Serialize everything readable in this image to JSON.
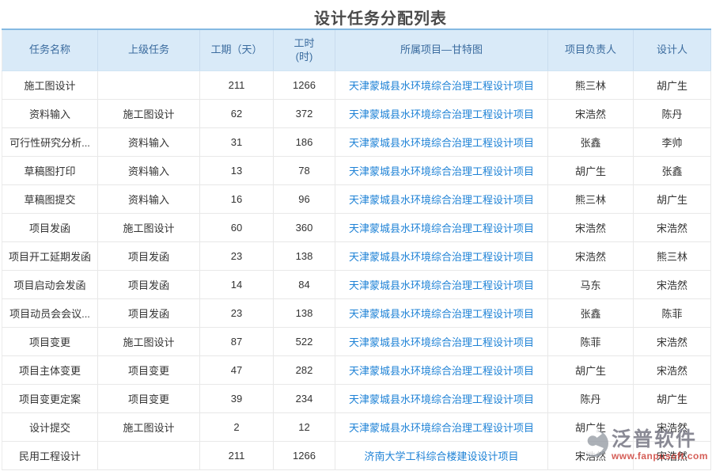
{
  "page": {
    "title": "设计任务分配列表"
  },
  "colors": {
    "header_bg": "#d9eaf8",
    "header_text": "#3a6b9e",
    "table_top_border": "#85b9e2",
    "row_border": "#e8e8e8",
    "body_text": "#333333",
    "link": "#1e82d6",
    "watermark_brand": "#71717e",
    "watermark_url": "#cc3b33"
  },
  "table": {
    "columns": [
      {
        "key": "task",
        "label": "任务名称"
      },
      {
        "key": "parent",
        "label": "上级任务"
      },
      {
        "key": "duration",
        "label": "工期（天）"
      },
      {
        "key": "hours",
        "label": "工时\n(时)"
      },
      {
        "key": "project",
        "label": "所属项目—甘特图"
      },
      {
        "key": "manager",
        "label": "项目负责人"
      },
      {
        "key": "designer",
        "label": "设计人"
      }
    ],
    "rows": [
      {
        "task": "施工图设计",
        "parent": "",
        "duration": "211",
        "hours": "1266",
        "project": "天津蒙城县水环境综合治理工程设计项目",
        "manager": "熊三林",
        "designer": "胡广生"
      },
      {
        "task": "资料输入",
        "parent": "施工图设计",
        "duration": "62",
        "hours": "372",
        "project": "天津蒙城县水环境综合治理工程设计项目",
        "manager": "宋浩然",
        "designer": "陈丹"
      },
      {
        "task": "可行性研究分析...",
        "parent": "资料输入",
        "duration": "31",
        "hours": "186",
        "project": "天津蒙城县水环境综合治理工程设计项目",
        "manager": "张鑫",
        "designer": "李帅"
      },
      {
        "task": "草稿图打印",
        "parent": "资料输入",
        "duration": "13",
        "hours": "78",
        "project": "天津蒙城县水环境综合治理工程设计项目",
        "manager": "胡广生",
        "designer": "张鑫"
      },
      {
        "task": "草稿图提交",
        "parent": "资料输入",
        "duration": "16",
        "hours": "96",
        "project": "天津蒙城县水环境综合治理工程设计项目",
        "manager": "熊三林",
        "designer": "胡广生"
      },
      {
        "task": "项目发函",
        "parent": "施工图设计",
        "duration": "60",
        "hours": "360",
        "project": "天津蒙城县水环境综合治理工程设计项目",
        "manager": "宋浩然",
        "designer": "宋浩然"
      },
      {
        "task": "项目开工延期发函",
        "parent": "项目发函",
        "duration": "23",
        "hours": "138",
        "project": "天津蒙城县水环境综合治理工程设计项目",
        "manager": "宋浩然",
        "designer": "熊三林"
      },
      {
        "task": "项目启动会发函",
        "parent": "项目发函",
        "duration": "14",
        "hours": "84",
        "project": "天津蒙城县水环境综合治理工程设计项目",
        "manager": "马东",
        "designer": "宋浩然"
      },
      {
        "task": "项目动员会会议...",
        "parent": "项目发函",
        "duration": "23",
        "hours": "138",
        "project": "天津蒙城县水环境综合治理工程设计项目",
        "manager": "张鑫",
        "designer": "陈菲"
      },
      {
        "task": "项目变更",
        "parent": "施工图设计",
        "duration": "87",
        "hours": "522",
        "project": "天津蒙城县水环境综合治理工程设计项目",
        "manager": "陈菲",
        "designer": "宋浩然"
      },
      {
        "task": "项目主体变更",
        "parent": "项目变更",
        "duration": "47",
        "hours": "282",
        "project": "天津蒙城县水环境综合治理工程设计项目",
        "manager": "胡广生",
        "designer": "宋浩然"
      },
      {
        "task": "项目变更定案",
        "parent": "项目变更",
        "duration": "39",
        "hours": "234",
        "project": "天津蒙城县水环境综合治理工程设计项目",
        "manager": "陈丹",
        "designer": "胡广生"
      },
      {
        "task": "设计提交",
        "parent": "施工图设计",
        "duration": "2",
        "hours": "12",
        "project": "天津蒙城县水环境综合治理工程设计项目",
        "manager": "胡广生",
        "designer": "宋浩然"
      },
      {
        "task": "民用工程设计",
        "parent": "",
        "duration": "211",
        "hours": "1266",
        "project": "济南大学工科综合楼建设设计项目",
        "manager": "宋浩然",
        "designer": "宋浩然"
      }
    ]
  },
  "watermark": {
    "brand": "泛普软件",
    "url": "www.fanpusoft.com"
  }
}
